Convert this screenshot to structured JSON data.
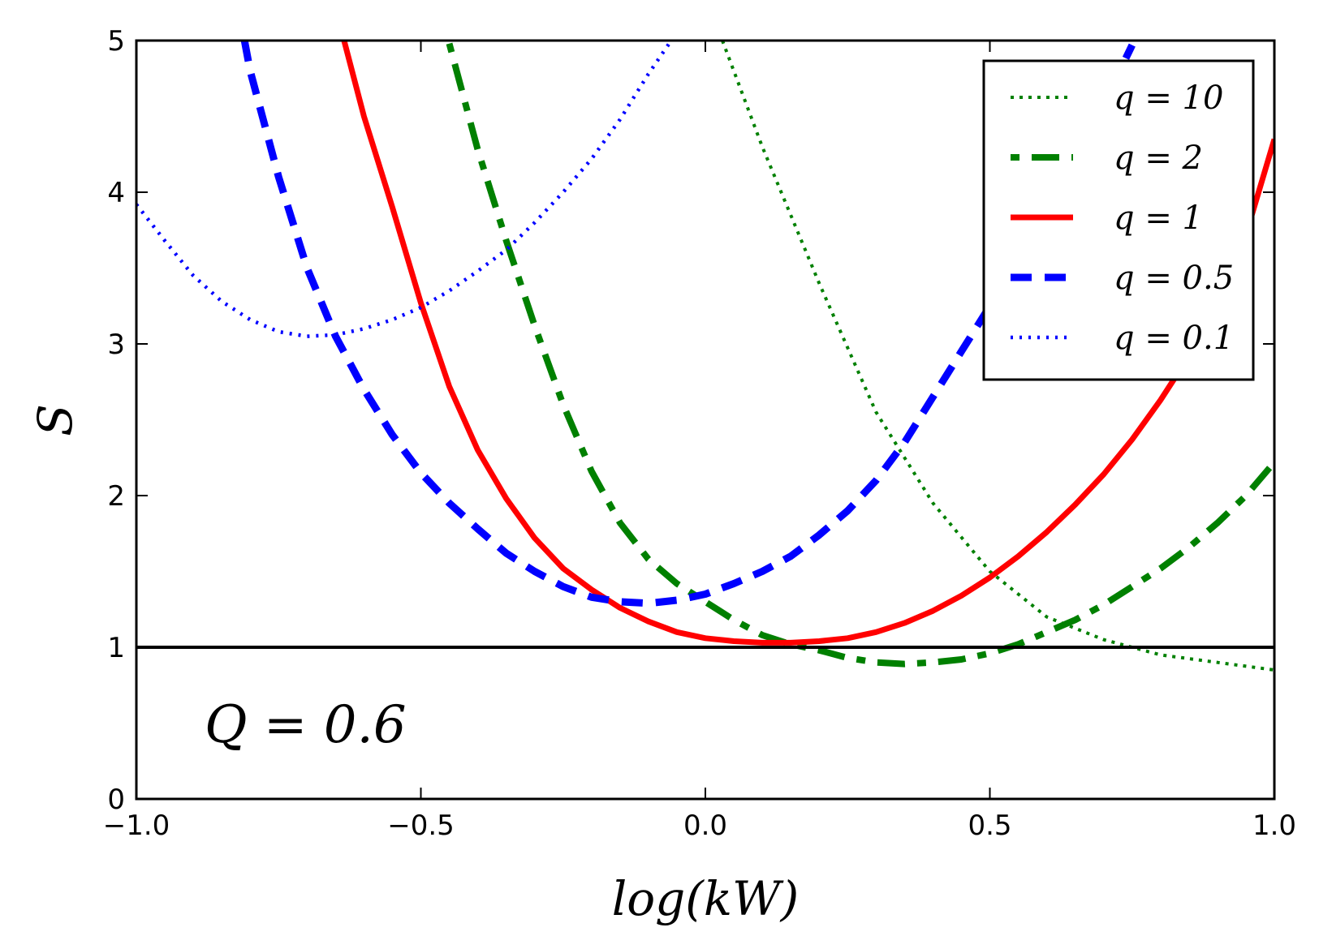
{
  "chart_data": {
    "type": "line",
    "xlabel": "log(kW)",
    "ylabel": "S",
    "xlim": [
      -1.0,
      1.0
    ],
    "ylim": [
      0,
      5
    ],
    "xticks": [
      -1.0,
      -0.5,
      0.0,
      0.5,
      1.0
    ],
    "xtick_labels": [
      "−1.0",
      "−0.5",
      "0.0",
      "0.5",
      "1.0"
    ],
    "yticks": [
      0,
      1,
      2,
      3,
      4,
      5
    ],
    "ytick_labels": [
      "0",
      "1",
      "2",
      "3",
      "4",
      "5"
    ],
    "grid": false,
    "legend_position": "top-right",
    "annotation": "Q = 0.6",
    "reference_line": {
      "y": 1,
      "color": "#000000"
    },
    "series": [
      {
        "name": "q = 10",
        "color": "#008000",
        "style": "dotted-thin",
        "x": [
          0.03,
          0.1,
          0.2,
          0.3,
          0.4,
          0.5,
          0.6,
          0.7,
          0.75,
          0.8,
          0.9,
          1.0
        ],
        "y": [
          5.0,
          4.3,
          3.4,
          2.55,
          1.95,
          1.5,
          1.2,
          1.05,
          1.0,
          0.95,
          0.9,
          0.85
        ]
      },
      {
        "name": "q = 2",
        "color": "#008000",
        "style": "dashdot",
        "x": [
          -0.45,
          -0.4,
          -0.35,
          -0.3,
          -0.25,
          -0.2,
          -0.15,
          -0.1,
          -0.05,
          0.0,
          0.05,
          0.1,
          0.15,
          0.2,
          0.25,
          0.3,
          0.35,
          0.4,
          0.45,
          0.5,
          0.55,
          0.6,
          0.65,
          0.7,
          0.75,
          0.8,
          0.85,
          0.9,
          0.95,
          1.0
        ],
        "y": [
          4.98,
          4.28,
          3.68,
          3.12,
          2.6,
          2.16,
          1.82,
          1.58,
          1.42,
          1.3,
          1.18,
          1.08,
          1.02,
          0.98,
          0.93,
          0.9,
          0.89,
          0.9,
          0.92,
          0.96,
          1.02,
          1.1,
          1.18,
          1.28,
          1.4,
          1.52,
          1.66,
          1.82,
          2.0,
          2.22
        ]
      },
      {
        "name": "q = 1",
        "color": "#ff0000",
        "style": "solid",
        "x": [
          -0.635,
          -0.6,
          -0.55,
          -0.5,
          -0.45,
          -0.4,
          -0.35,
          -0.3,
          -0.25,
          -0.2,
          -0.15,
          -0.1,
          -0.05,
          0.0,
          0.05,
          0.1,
          0.15,
          0.2,
          0.25,
          0.3,
          0.35,
          0.4,
          0.45,
          0.5,
          0.55,
          0.6,
          0.65,
          0.7,
          0.75,
          0.8,
          0.85,
          0.9,
          0.95,
          1.0
        ],
        "y": [
          5.0,
          4.5,
          3.9,
          3.27,
          2.72,
          2.3,
          1.98,
          1.72,
          1.52,
          1.38,
          1.26,
          1.17,
          1.1,
          1.06,
          1.04,
          1.03,
          1.03,
          1.04,
          1.06,
          1.1,
          1.16,
          1.24,
          1.34,
          1.46,
          1.6,
          1.76,
          1.94,
          2.14,
          2.37,
          2.63,
          2.92,
          3.25,
          3.72,
          4.35
        ]
      },
      {
        "name": "q = 0.5",
        "color": "#0000ff",
        "style": "dashed",
        "x": [
          -0.81,
          -0.8,
          -0.75,
          -0.7,
          -0.65,
          -0.6,
          -0.55,
          -0.5,
          -0.45,
          -0.4,
          -0.35,
          -0.3,
          -0.25,
          -0.2,
          -0.15,
          -0.1,
          -0.05,
          0.0,
          0.05,
          0.1,
          0.15,
          0.2,
          0.25,
          0.3,
          0.35,
          0.4,
          0.45,
          0.5,
          0.55,
          0.6,
          0.65,
          0.7,
          0.75
        ],
        "y": [
          5.0,
          4.8,
          4.1,
          3.5,
          3.05,
          2.7,
          2.4,
          2.15,
          1.95,
          1.78,
          1.62,
          1.5,
          1.4,
          1.33,
          1.3,
          1.29,
          1.31,
          1.35,
          1.42,
          1.5,
          1.6,
          1.74,
          1.9,
          2.1,
          2.35,
          2.65,
          2.95,
          3.25,
          3.55,
          3.87,
          4.2,
          4.58,
          4.97
        ]
      },
      {
        "name": "q = 0.1",
        "color": "#0000ff",
        "style": "dotted",
        "x": [
          -1.0,
          -0.95,
          -0.9,
          -0.85,
          -0.8,
          -0.75,
          -0.7,
          -0.65,
          -0.6,
          -0.55,
          -0.5,
          -0.45,
          -0.4,
          -0.35,
          -0.3,
          -0.25,
          -0.2,
          -0.15,
          -0.1,
          -0.06
        ],
        "y": [
          3.92,
          3.68,
          3.45,
          3.28,
          3.16,
          3.08,
          3.05,
          3.06,
          3.1,
          3.16,
          3.24,
          3.35,
          3.48,
          3.62,
          3.8,
          4.0,
          4.22,
          4.48,
          4.78,
          5.0
        ]
      }
    ]
  }
}
